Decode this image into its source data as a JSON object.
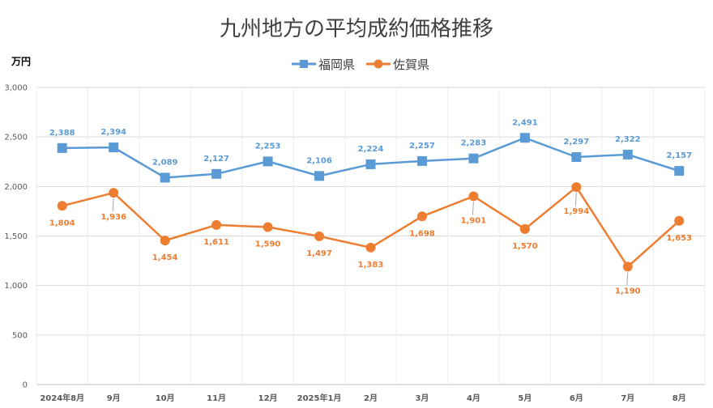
{
  "chart_data": {
    "type": "line",
    "title": "九州地方の平均成約価格推移",
    "ylabel": "万円",
    "ylim": [
      0,
      3000
    ],
    "yticks": [
      0,
      500,
      1000,
      1500,
      2000,
      2500,
      3000
    ],
    "ytick_labels": [
      "0",
      "500",
      "1,000",
      "1,500",
      "2,000",
      "2,500",
      "3,000"
    ],
    "grid": true,
    "legend_position": "top-center",
    "categories": [
      "2024年8月",
      "9月",
      "10月",
      "11月",
      "12月",
      "2025年1月",
      "2月",
      "3月",
      "4月",
      "5月",
      "6月",
      "7月",
      "8月"
    ],
    "series": [
      {
        "name": "福岡県",
        "color": "#5B9BD5",
        "marker": "square",
        "label_position": "above",
        "values": [
          2388,
          2394,
          2089,
          2127,
          2253,
          2106,
          2224,
          2257,
          2283,
          2491,
          2297,
          2322,
          2157
        ],
        "value_labels": [
          "2,388",
          "2,394",
          "2,089",
          "2,127",
          "2,253",
          "2,106",
          "2,224",
          "2,257",
          "2,283",
          "2,491",
          "2,297",
          "2,322",
          "2,157"
        ]
      },
      {
        "name": "佐賀県",
        "color": "#ED7D31",
        "marker": "circle",
        "label_position": "below",
        "values": [
          1804,
          1936,
          1454,
          1611,
          1590,
          1497,
          1383,
          1698,
          1901,
          1570,
          1994,
          1190,
          1653
        ],
        "value_labels": [
          "1,804",
          "1,936",
          "1,454",
          "1,611",
          "1,590",
          "1,497",
          "1,383",
          "1,698",
          "1,901",
          "1,570",
          "1,994",
          "1,190",
          "1,653"
        ]
      }
    ]
  }
}
